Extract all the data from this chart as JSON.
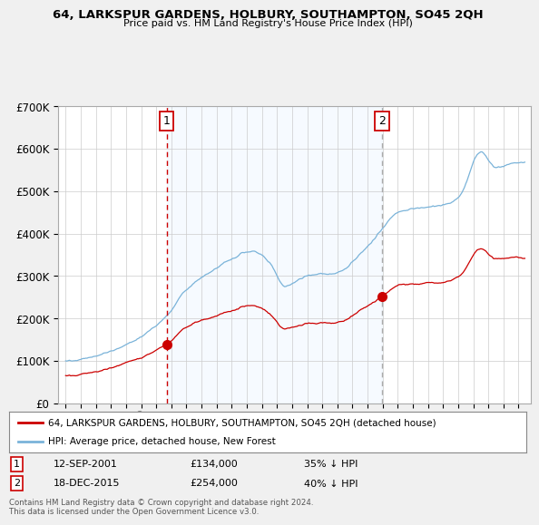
{
  "title": "64, LARKSPUR GARDENS, HOLBURY, SOUTHAMPTON, SO45 2QH",
  "subtitle": "Price paid vs. HM Land Registry's House Price Index (HPI)",
  "footer": "Contains HM Land Registry data © Crown copyright and database right 2024.\nThis data is licensed under the Open Government Licence v3.0.",
  "legend_line1": "64, LARKSPUR GARDENS, HOLBURY, SOUTHAMPTON, SO45 2QH (detached house)",
  "legend_line2": "HPI: Average price, detached house, New Forest",
  "annotation1": {
    "num": "1",
    "date": "12-SEP-2001",
    "price": "£134,000",
    "hpi": "35% ↓ HPI"
  },
  "annotation2": {
    "num": "2",
    "date": "18-DEC-2015",
    "price": "£254,000",
    "hpi": "40% ↓ HPI"
  },
  "sale1_year": 2001.7,
  "sale1_price": 134000,
  "sale2_year": 2015.96,
  "sale2_price": 254000,
  "hpi_color": "#7ab3d9",
  "price_color": "#cc0000",
  "vline1_color": "#cc0000",
  "vline2_color": "#aaaaaa",
  "shade_color": "#ddeeff",
  "ylim": [
    0,
    700000
  ],
  "yticks": [
    0,
    100000,
    200000,
    300000,
    400000,
    500000,
    600000,
    700000
  ],
  "xlim_start": 1994.5,
  "xlim_end": 2025.8,
  "background_color": "#f0f0f0",
  "plot_bg_color": "#ffffff",
  "grid_color": "#cccccc"
}
